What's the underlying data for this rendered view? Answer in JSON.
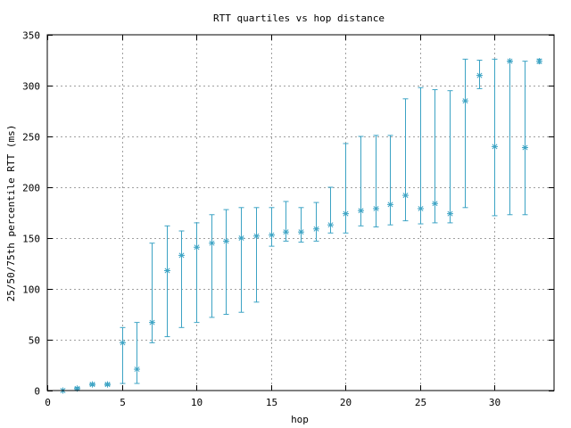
{
  "chart_data": {
    "type": "scatter",
    "title": "RTT quartiles vs hop distance",
    "xlabel": "hop",
    "ylabel": "25/50/75th percentile RTT (ms)",
    "xlim": [
      0,
      34
    ],
    "ylim": [
      0,
      350
    ],
    "xticks": [
      0,
      5,
      10,
      15,
      20,
      25,
      30
    ],
    "yticks": [
      0,
      50,
      100,
      150,
      200,
      250,
      300,
      350
    ],
    "grid": true,
    "series": [
      {
        "color": "#3ca3c4",
        "marker": "asterisk",
        "errorbars": true,
        "points": [
          {
            "x": 1,
            "median": 0,
            "q25": 0,
            "q75": 0
          },
          {
            "x": 2,
            "median": 2,
            "q25": 1,
            "q75": 3
          },
          {
            "x": 3,
            "median": 6,
            "q25": 5,
            "q75": 7
          },
          {
            "x": 4,
            "median": 6,
            "q25": 5,
            "q75": 7
          },
          {
            "x": 5,
            "median": 47,
            "q25": 7,
            "q75": 62
          },
          {
            "x": 6,
            "median": 21,
            "q25": 7,
            "q75": 67
          },
          {
            "x": 7,
            "median": 67,
            "q25": 47,
            "q75": 145
          },
          {
            "x": 8,
            "median": 118,
            "q25": 53,
            "q75": 162
          },
          {
            "x": 9,
            "median": 133,
            "q25": 62,
            "q75": 157
          },
          {
            "x": 10,
            "median": 141,
            "q25": 67,
            "q75": 165
          },
          {
            "x": 11,
            "median": 145,
            "q25": 72,
            "q75": 173
          },
          {
            "x": 12,
            "median": 147,
            "q25": 75,
            "q75": 178
          },
          {
            "x": 13,
            "median": 150,
            "q25": 77,
            "q75": 180
          },
          {
            "x": 14,
            "median": 152,
            "q25": 87,
            "q75": 180
          },
          {
            "x": 15,
            "median": 153,
            "q25": 142,
            "q75": 180
          },
          {
            "x": 16,
            "median": 156,
            "q25": 147,
            "q75": 186
          },
          {
            "x": 17,
            "median": 156,
            "q25": 146,
            "q75": 180
          },
          {
            "x": 18,
            "median": 159,
            "q25": 147,
            "q75": 185
          },
          {
            "x": 19,
            "median": 163,
            "q25": 155,
            "q75": 200
          },
          {
            "x": 20,
            "median": 174,
            "q25": 155,
            "q75": 243
          },
          {
            "x": 21,
            "median": 177,
            "q25": 162,
            "q75": 250
          },
          {
            "x": 22,
            "median": 179,
            "q25": 161,
            "q75": 251
          },
          {
            "x": 23,
            "median": 183,
            "q25": 163,
            "q75": 251
          },
          {
            "x": 24,
            "median": 192,
            "q25": 167,
            "q75": 287
          },
          {
            "x": 25,
            "median": 179,
            "q25": 164,
            "q75": 298
          },
          {
            "x": 26,
            "median": 184,
            "q25": 165,
            "q75": 296
          },
          {
            "x": 27,
            "median": 174,
            "q25": 165,
            "q75": 295
          },
          {
            "x": 28,
            "median": 285,
            "q25": 180,
            "q75": 326
          },
          {
            "x": 29,
            "median": 310,
            "q25": 297,
            "q75": 325
          },
          {
            "x": 30,
            "median": 240,
            "q25": 172,
            "q75": 326
          },
          {
            "x": 31,
            "median": 324,
            "q25": 173,
            "q75": 324
          },
          {
            "x": 32,
            "median": 239,
            "q25": 173,
            "q75": 324
          },
          {
            "x": 33,
            "median": 324,
            "q25": 322,
            "q75": 326
          }
        ]
      }
    ]
  }
}
